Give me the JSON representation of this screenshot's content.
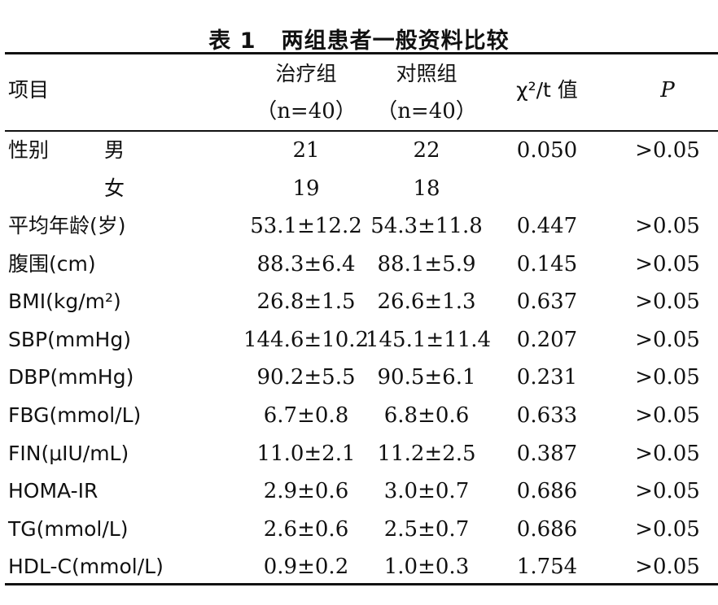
{
  "title": "表 1   两组患者一般资料比较",
  "header": {
    "item": "项目",
    "group1_name": "治疗组",
    "group1_n": "（n=40）",
    "group2_name": "对照组",
    "group2_n": "（n=40）",
    "stat": "χ²/t 值",
    "p": "P"
  },
  "rows": [
    {
      "label": "性别",
      "sub": "男",
      "g1": "21",
      "g2": "22",
      "stat": "0.050",
      "p": ">0.05"
    },
    {
      "label": "",
      "sub": "女",
      "g1": "19",
      "g2": "18",
      "stat": "",
      "p": ""
    },
    {
      "label": "平均年龄(岁)",
      "sub": "",
      "g1": "53.1±12.2",
      "g2": "54.3±11.8",
      "stat": "0.447",
      "p": ">0.05"
    },
    {
      "label": "腹围(cm)",
      "sub": "",
      "g1": "88.3±6.4",
      "g2": "88.1±5.9",
      "stat": "0.145",
      "p": ">0.05"
    },
    {
      "label": "BMI(kg/m²)",
      "sub": "",
      "g1": "26.8±1.5",
      "g2": "26.6±1.3",
      "stat": "0.637",
      "p": ">0.05"
    },
    {
      "label": "SBP(mmHg)",
      "sub": "",
      "g1": "144.6±10.2",
      "g2": "145.1±11.4",
      "stat": "0.207",
      "p": ">0.05"
    },
    {
      "label": "DBP(mmHg)",
      "sub": "",
      "g1": "90.2±5.5",
      "g2": "90.5±6.1",
      "stat": "0.231",
      "p": ">0.05"
    },
    {
      "label": "FBG(mmol/L)",
      "sub": "",
      "g1": "6.7±0.8",
      "g2": "6.8±0.6",
      "stat": "0.633",
      "p": ">0.05"
    },
    {
      "label": "FIN(μIU/mL)",
      "sub": "",
      "g1": "11.0±2.1",
      "g2": "11.2±2.5",
      "stat": "0.387",
      "p": ">0.05"
    },
    {
      "label": "HOMA-IR",
      "sub": "",
      "g1": "2.9±0.6",
      "g2": "3.0±0.7",
      "stat": "0.686",
      "p": ">0.05"
    },
    {
      "label": "TG(mmol/L)",
      "sub": "",
      "g1": "2.6±0.6",
      "g2": "2.5±0.7",
      "stat": "0.686",
      "p": ">0.05"
    },
    {
      "label": "HDL-C(mmol/L)",
      "sub": "",
      "g1": "0.9±0.2",
      "g2": "1.0±0.3",
      "stat": "1.754",
      "p": ">0.05"
    }
  ]
}
